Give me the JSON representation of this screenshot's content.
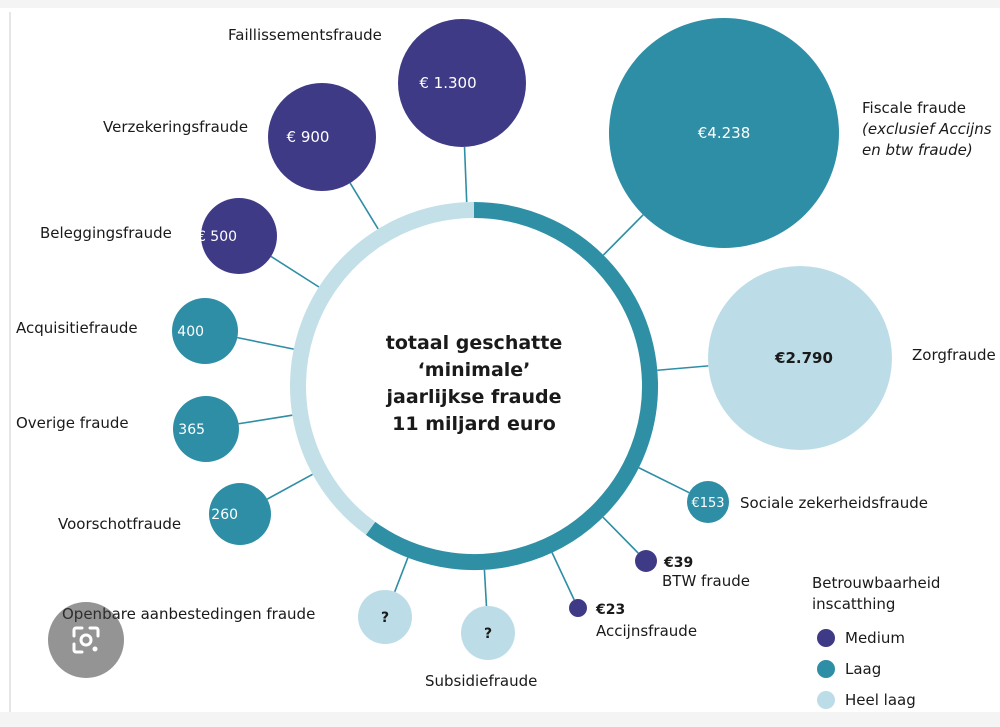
{
  "colors": {
    "medium": "#3f3a86",
    "laag": "#2e8ea6",
    "heel_laag": "#bcdde7",
    "ring_dark": "#2f8fa5",
    "ring_light": "#c3e0e9",
    "connector": "#2e8ea6",
    "text": "#1a1a1a"
  },
  "center_text": [
    "totaal geschatte",
    "‘minimale’",
    "jaarlijkse fraude",
    "11 miljard euro"
  ],
  "chart_data": {
    "type": "bubble",
    "title": "totaal geschatte ‘minimale’ jaarlijkse fraude 11 miljard euro",
    "total": "11 miljard euro",
    "items": [
      {
        "label": "Faillissementsfraude",
        "value_label": "€ 1.300",
        "value": 1300,
        "reliability": "Medium"
      },
      {
        "label": "Verzekeringsfraude",
        "value_label": "€ 900",
        "value": 900,
        "reliability": "Medium"
      },
      {
        "label": "Beleggingsfraude",
        "value_label": "€ 500",
        "value": 500,
        "reliability": "Medium"
      },
      {
        "label": "Acquisitiefraude",
        "value_label": "€ 400",
        "value": 400,
        "reliability": "Laag"
      },
      {
        "label": "Overige fraude",
        "value_label": "€ 365",
        "value": 365,
        "reliability": "Laag"
      },
      {
        "label": "Voorschotfraude",
        "value_label": "€ 260",
        "value": 260,
        "reliability": "Laag"
      },
      {
        "label": "Openbare aanbestedingen fraude",
        "value_label": "?",
        "value": null,
        "reliability": "Heel laag"
      },
      {
        "label": "Subsidiefraude",
        "value_label": "?",
        "value": null,
        "reliability": "Heel laag"
      },
      {
        "label": "Accijnsfraude",
        "value_label": "€23",
        "value": 23,
        "reliability": "Medium"
      },
      {
        "label": "BTW fraude",
        "value_label": "€39",
        "value": 39,
        "reliability": "Medium"
      },
      {
        "label": "Sociale zekerheidsfraude",
        "value_label": "€153",
        "value": 153,
        "reliability": "Laag"
      },
      {
        "label": "Zorgfraude",
        "value_label": "€2.790",
        "value": 2790,
        "reliability": "Heel laag"
      },
      {
        "label": "Fiscale fraude",
        "sublabel": [
          "(exclusief Accijns",
          "en btw fraude)"
        ],
        "value_label": "€4.238",
        "value": 4238,
        "reliability": "Laag"
      }
    ],
    "legend": {
      "title": [
        "Betrouwbaarheid",
        "inscatthing"
      ],
      "entries": [
        {
          "label": "Medium",
          "color": "#3f3a86"
        },
        {
          "label": "Laag",
          "color": "#2e8ea6"
        },
        {
          "label": "Heel laag",
          "color": "#bcdde7"
        }
      ]
    }
  }
}
